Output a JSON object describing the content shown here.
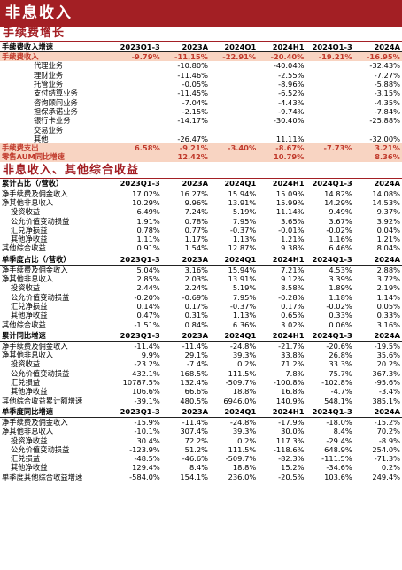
{
  "title": "非息收入",
  "columns": [
    "2023Q1-3",
    "2023A",
    "2024Q1",
    "2024H1",
    "2024Q1-3",
    "2024A"
  ],
  "sections": [
    {
      "title": "手续费增长",
      "tables": [
        {
          "header": "手续费收入增速",
          "header_values": [
            "2023Q1-3",
            "2023A",
            "2024Q1",
            "2024H1",
            "2024Q1-3",
            "2024A"
          ],
          "rows": [
            {
              "label": "手续费收入",
              "indent": 0,
              "hl": true,
              "values": [
                "-9.79%",
                "-11.15%",
                "-22.91%",
                "-20.40%",
                "-19.21%",
                "-16.95%"
              ]
            },
            {
              "label": "代理业务",
              "indent": 1,
              "values": [
                "",
                "-10.80%",
                "",
                "-40.04%",
                "",
                "-32.43%"
              ]
            },
            {
              "label": "理财业务",
              "indent": 1,
              "values": [
                "",
                "-11.46%",
                "",
                "-2.55%",
                "",
                "-7.27%"
              ]
            },
            {
              "label": "托管业务",
              "indent": 1,
              "values": [
                "",
                "-0.05%",
                "",
                "-8.96%",
                "",
                "-5.88%"
              ]
            },
            {
              "label": "支付结算业务",
              "indent": 1,
              "values": [
                "",
                "-11.45%",
                "",
                "-6.52%",
                "",
                "-3.15%"
              ]
            },
            {
              "label": "咨询顾问业务",
              "indent": 1,
              "values": [
                "",
                "-7.04%",
                "",
                "-4.43%",
                "",
                "-4.35%"
              ]
            },
            {
              "label": "担保承诺业务",
              "indent": 1,
              "values": [
                "",
                "-2.15%",
                "",
                "-9.74%",
                "",
                "-7.84%"
              ]
            },
            {
              "label": "银行卡业务",
              "indent": 1,
              "values": [
                "",
                "-14.17%",
                "",
                "-30.40%",
                "",
                "-25.88%"
              ]
            },
            {
              "label": "交易业务",
              "indent": 1,
              "values": [
                "",
                "",
                "",
                "",
                "",
                ""
              ]
            },
            {
              "label": "其他",
              "indent": 1,
              "values": [
                "",
                "-26.47%",
                "",
                "11.11%",
                "",
                "-32.00%"
              ]
            },
            {
              "label": "手续费支出",
              "indent": 0,
              "hl": true,
              "values": [
                "6.58%",
                "-9.21%",
                "-3.40%",
                "-8.67%",
                "-7.73%",
                "3.21%"
              ]
            },
            {
              "label": "零售AUM同比增速",
              "indent": 0,
              "hl": true,
              "values": [
                "",
                "12.42%",
                "",
                "10.79%",
                "",
                "8.36%"
              ]
            }
          ]
        }
      ]
    },
    {
      "title": "非息收入、其他综合收益",
      "tables": [
        {
          "header": "累计占比（/营收）",
          "header_values": [
            "2023Q1-3",
            "2023A",
            "2024Q1",
            "2024H1",
            "2024Q1-3",
            "2024A"
          ],
          "rows": [
            {
              "label": "净手续费及佣金收入",
              "indent": 0,
              "values": [
                "17.02%",
                "16.27%",
                "15.94%",
                "15.09%",
                "14.82%",
                "14.08%"
              ]
            },
            {
              "label": "净其他非息收入",
              "indent": 0,
              "values": [
                "10.29%",
                "9.96%",
                "13.91%",
                "15.99%",
                "14.29%",
                "14.53%"
              ]
            },
            {
              "label": "投资收益",
              "indent": 1,
              "values": [
                "6.49%",
                "7.24%",
                "5.19%",
                "11.14%",
                "9.49%",
                "9.37%"
              ]
            },
            {
              "label": "公允价值变动损益",
              "indent": 1,
              "values": [
                "1.91%",
                "0.78%",
                "7.95%",
                "3.65%",
                "3.67%",
                "3.92%"
              ]
            },
            {
              "label": "汇兑净损益",
              "indent": 1,
              "values": [
                "0.78%",
                "0.77%",
                "-0.37%",
                "-0.01%",
                "-0.02%",
                "0.04%"
              ]
            },
            {
              "label": "其他净收益",
              "indent": 1,
              "values": [
                "1.11%",
                "1.17%",
                "1.13%",
                "1.21%",
                "1.16%",
                "1.21%"
              ]
            },
            {
              "label": "其他综合收益",
              "indent": 0,
              "values": [
                "0.91%",
                "1.54%",
                "12.87%",
                "9.38%",
                "6.46%",
                "8.04%"
              ]
            }
          ]
        },
        {
          "header": "单季度占比（/营收）",
          "header_values": [
            "2023Q1-3",
            "2023A",
            "2024Q1",
            "2024H1",
            "2024Q1-3",
            "2024A"
          ],
          "rows": [
            {
              "label": "净手续费及佣金收入",
              "indent": 0,
              "values": [
                "5.04%",
                "3.16%",
                "15.94%",
                "7.21%",
                "4.53%",
                "2.88%"
              ]
            },
            {
              "label": "净其他非息收入",
              "indent": 0,
              "values": [
                "2.85%",
                "2.03%",
                "13.91%",
                "9.12%",
                "3.39%",
                "3.72%"
              ]
            },
            {
              "label": "投资收益",
              "indent": 1,
              "values": [
                "2.44%",
                "2.24%",
                "5.19%",
                "8.58%",
                "1.89%",
                "2.19%"
              ]
            },
            {
              "label": "公允价值变动损益",
              "indent": 1,
              "values": [
                "-0.20%",
                "-0.69%",
                "7.95%",
                "-0.28%",
                "1.18%",
                "1.14%"
              ]
            },
            {
              "label": "汇兑净损益",
              "indent": 1,
              "values": [
                "0.14%",
                "0.17%",
                "-0.37%",
                "0.17%",
                "-0.02%",
                "0.05%"
              ]
            },
            {
              "label": "其他净收益",
              "indent": 1,
              "values": [
                "0.47%",
                "0.31%",
                "1.13%",
                "0.65%",
                "0.33%",
                "0.33%"
              ]
            },
            {
              "label": "其他综合收益",
              "indent": 0,
              "values": [
                "-1.51%",
                "0.84%",
                "6.36%",
                "3.02%",
                "0.06%",
                "3.16%"
              ]
            }
          ]
        },
        {
          "header": "累计同比增速",
          "header_values": [
            "2023Q1-3",
            "2023A",
            "2024Q1",
            "2024H1",
            "2024Q1-3",
            "2024A"
          ],
          "rows": [
            {
              "label": "净手续费及佣金收入",
              "indent": 0,
              "values": [
                "-11.4%",
                "-11.4%",
                "-24.8%",
                "-21.7%",
                "-20.6%",
                "-19.5%"
              ]
            },
            {
              "label": "净其他非息收入",
              "indent": 0,
              "values": [
                "9.9%",
                "29.1%",
                "39.3%",
                "33.8%",
                "26.8%",
                "35.6%"
              ]
            },
            {
              "label": "投资收益",
              "indent": 1,
              "values": [
                "-23.2%",
                "-7.4%",
                "0.2%",
                "71.2%",
                "33.3%",
                "20.2%"
              ]
            },
            {
              "label": "公允价值变动损益",
              "indent": 1,
              "values": [
                "432.1%",
                "168.5%",
                "111.5%",
                "7.8%",
                "75.7%",
                "367.3%"
              ]
            },
            {
              "label": "汇兑损益",
              "indent": 1,
              "values": [
                "10787.5%",
                "132.4%",
                "-509.7%",
                "-100.8%",
                "-102.8%",
                "-95.6%"
              ]
            },
            {
              "label": "其他净收益",
              "indent": 1,
              "values": [
                "106.6%",
                "66.6%",
                "18.8%",
                "16.8%",
                "-4.7%",
                "-3.4%"
              ]
            },
            {
              "label": "其他综合收益累计额增速",
              "indent": 0,
              "values": [
                "-39.1%",
                "480.5%",
                "6946.0%",
                "140.9%",
                "548.1%",
                "385.1%"
              ]
            }
          ]
        },
        {
          "header": "单季度同比增速",
          "header_values": [
            "2023Q1-3",
            "2023A",
            "2024Q1",
            "2024H1",
            "2024Q1-3",
            "2024A"
          ],
          "rows": [
            {
              "label": "净手续费及佣金收入",
              "indent": 0,
              "values": [
                "-15.9%",
                "-11.4%",
                "-24.8%",
                "-17.9%",
                "-18.0%",
                "-15.2%"
              ]
            },
            {
              "label": "净其他非息收入",
              "indent": 0,
              "values": [
                "-10.1%",
                "307.4%",
                "39.3%",
                "30.0%",
                "8.4%",
                "70.2%"
              ]
            },
            {
              "label": "投资净收益",
              "indent": 1,
              "values": [
                "30.4%",
                "72.2%",
                "0.2%",
                "117.3%",
                "-29.4%",
                "-8.9%"
              ]
            },
            {
              "label": "公允价值变动损益",
              "indent": 1,
              "values": [
                "-123.9%",
                "51.2%",
                "111.5%",
                "-118.6%",
                "648.9%",
                "254.0%"
              ]
            },
            {
              "label": "汇兑损益",
              "indent": 1,
              "values": [
                "-48.5%",
                "-46.6%",
                "-509.7%",
                "-82.3%",
                "-111.5%",
                "-71.3%"
              ]
            },
            {
              "label": "其他净收益",
              "indent": 1,
              "values": [
                "129.4%",
                "8.4%",
                "18.8%",
                "15.2%",
                "-34.6%",
                "0.2%"
              ]
            },
            {
              "label": "单季度其他综合收益增速",
              "indent": 0,
              "values": [
                "-584.0%",
                "154.1%",
                "236.0%",
                "-20.5%",
                "103.6%",
                "249.4%"
              ]
            }
          ]
        }
      ]
    }
  ]
}
